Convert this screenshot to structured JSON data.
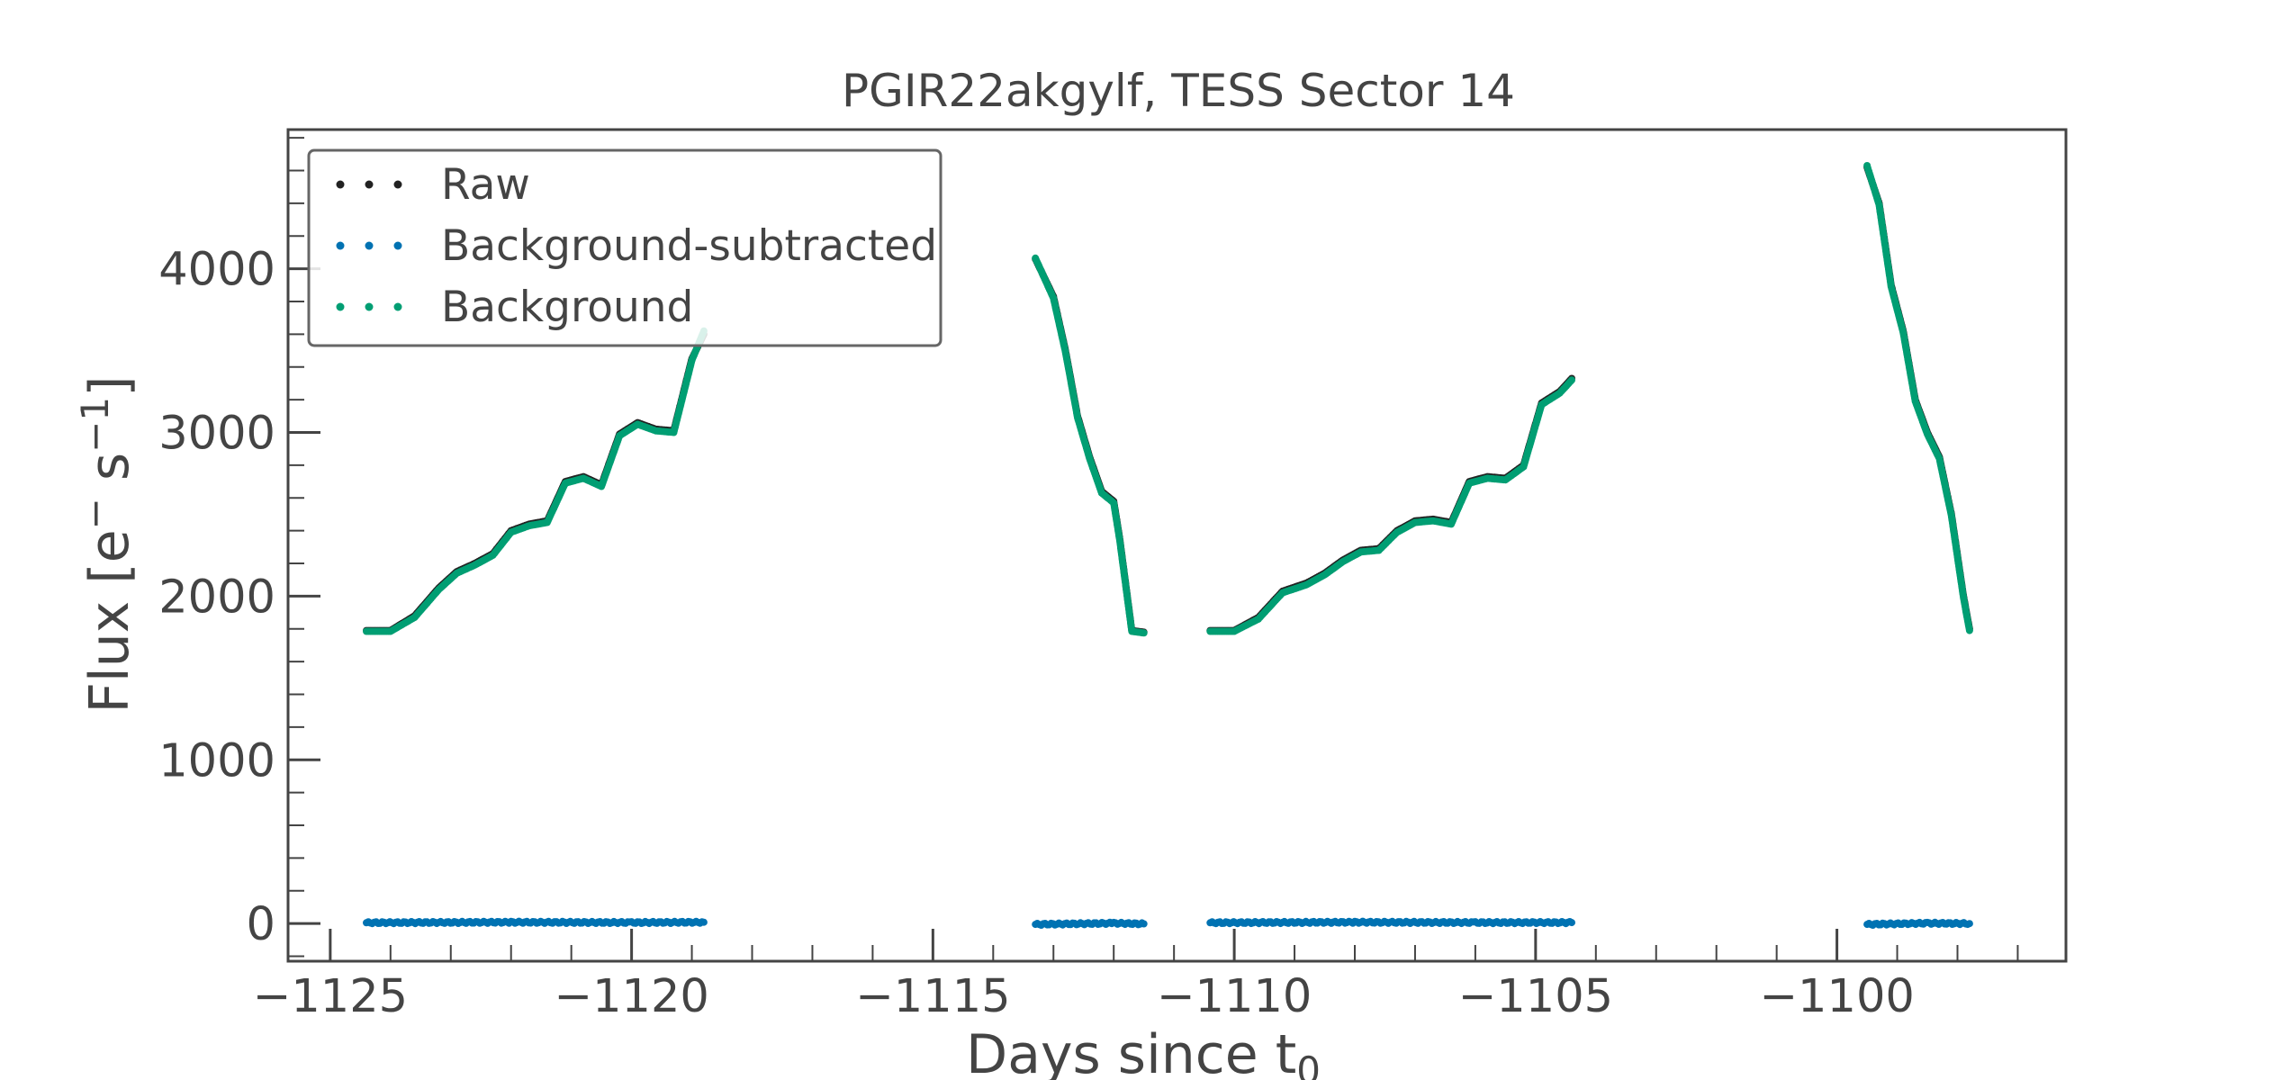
{
  "chart_data": {
    "type": "scatter",
    "title": "PGIR22akgylf, TESS Sector 14",
    "xlabel": "Days since t",
    "xlabel_subscript": "0",
    "ylabel": "Flux [e",
    "ylabel_sup1": "−",
    "ylabel_mid": " s",
    "ylabel_sup2": "−1",
    "ylabel_end": "]",
    "xlim": [
      -1125.7,
      -1096.2
    ],
    "ylim": [
      -230,
      4850
    ],
    "xticks": [
      -1125,
      -1120,
      -1115,
      -1110,
      -1105,
      -1100
    ],
    "xtick_labels": [
      "−1125",
      "−1120",
      "−1115",
      "−1110",
      "−1105",
      "−1100"
    ],
    "yticks": [
      0,
      1000,
      2000,
      3000,
      4000
    ],
    "ytick_labels": [
      "0",
      "1000",
      "2000",
      "3000",
      "4000"
    ],
    "grid": false,
    "legend_position": "top-left",
    "series": [
      {
        "name": "Raw",
        "color": "#222222",
        "segments": [
          [
            [
              -1124.4,
              1790
            ],
            [
              -1124.0,
              1790
            ],
            [
              -1123.6,
              1880
            ],
            [
              -1123.2,
              2050
            ],
            [
              -1122.9,
              2150
            ],
            [
              -1122.6,
              2200
            ],
            [
              -1122.3,
              2260
            ],
            [
              -1122.0,
              2400
            ],
            [
              -1121.7,
              2440
            ],
            [
              -1121.4,
              2460
            ],
            [
              -1121.1,
              2700
            ],
            [
              -1120.8,
              2730
            ],
            [
              -1120.5,
              2680
            ],
            [
              -1120.2,
              2990
            ],
            [
              -1119.9,
              3060
            ],
            [
              -1119.6,
              3020
            ],
            [
              -1119.3,
              3010
            ],
            [
              -1119.0,
              3450
            ],
            [
              -1118.8,
              3600
            ]
          ],
          [
            [
              -1113.3,
              4060
            ],
            [
              -1113.0,
              3830
            ],
            [
              -1112.8,
              3500
            ],
            [
              -1112.6,
              3100
            ],
            [
              -1112.4,
              2850
            ],
            [
              -1112.2,
              2640
            ],
            [
              -1112.0,
              2580
            ],
            [
              -1111.9,
              2350
            ],
            [
              -1111.7,
              1790
            ],
            [
              -1111.5,
              1780
            ]
          ],
          [
            [
              -1110.4,
              1790
            ],
            [
              -1110.0,
              1790
            ],
            [
              -1109.6,
              1870
            ],
            [
              -1109.2,
              2030
            ],
            [
              -1108.8,
              2080
            ],
            [
              -1108.5,
              2140
            ],
            [
              -1108.2,
              2220
            ],
            [
              -1107.9,
              2280
            ],
            [
              -1107.6,
              2290
            ],
            [
              -1107.3,
              2400
            ],
            [
              -1107.0,
              2460
            ],
            [
              -1106.7,
              2470
            ],
            [
              -1106.4,
              2450
            ],
            [
              -1106.1,
              2700
            ],
            [
              -1105.8,
              2730
            ],
            [
              -1105.5,
              2720
            ],
            [
              -1105.2,
              2800
            ],
            [
              -1104.9,
              3180
            ],
            [
              -1104.6,
              3250
            ],
            [
              -1104.4,
              3330
            ]
          ],
          [
            [
              -1099.5,
              4620
            ],
            [
              -1099.3,
              4400
            ],
            [
              -1099.1,
              3900
            ],
            [
              -1098.9,
              3620
            ],
            [
              -1098.7,
              3200
            ],
            [
              -1098.5,
              3000
            ],
            [
              -1098.3,
              2850
            ],
            [
              -1098.1,
              2500
            ],
            [
              -1097.9,
              2000
            ],
            [
              -1097.8,
              1800
            ]
          ]
        ]
      },
      {
        "name": "Background-subtracted",
        "color": "#0072b2",
        "segments": [
          [
            [
              -1124.4,
              5
            ],
            [
              -1122.0,
              8
            ],
            [
              -1120.0,
              6
            ],
            [
              -1118.8,
              8
            ]
          ],
          [
            [
              -1113.3,
              -5
            ],
            [
              -1112.0,
              2
            ],
            [
              -1111.5,
              -2
            ]
          ],
          [
            [
              -1110.4,
              5
            ],
            [
              -1108.0,
              8
            ],
            [
              -1106.0,
              6
            ],
            [
              -1104.4,
              6
            ]
          ],
          [
            [
              -1099.5,
              -5
            ],
            [
              -1098.5,
              2
            ],
            [
              -1097.8,
              0
            ]
          ]
        ]
      },
      {
        "name": "Background",
        "color": "#009e73",
        "segments": [
          [
            [
              -1124.4,
              1785
            ],
            [
              -1124.0,
              1785
            ],
            [
              -1123.6,
              1870
            ],
            [
              -1123.2,
              2040
            ],
            [
              -1122.9,
              2140
            ],
            [
              -1122.6,
              2190
            ],
            [
              -1122.3,
              2250
            ],
            [
              -1122.0,
              2390
            ],
            [
              -1121.7,
              2430
            ],
            [
              -1121.4,
              2450
            ],
            [
              -1121.1,
              2690
            ],
            [
              -1120.8,
              2720
            ],
            [
              -1120.5,
              2670
            ],
            [
              -1120.2,
              2980
            ],
            [
              -1119.9,
              3050
            ],
            [
              -1119.6,
              3010
            ],
            [
              -1119.3,
              3000
            ],
            [
              -1119.0,
              3440
            ],
            [
              -1118.8,
              3620
            ]
          ],
          [
            [
              -1113.3,
              4065
            ],
            [
              -1113.0,
              3820
            ],
            [
              -1112.8,
              3490
            ],
            [
              -1112.6,
              3090
            ],
            [
              -1112.4,
              2840
            ],
            [
              -1112.2,
              2630
            ],
            [
              -1112.0,
              2570
            ],
            [
              -1111.9,
              2340
            ],
            [
              -1111.7,
              1785
            ],
            [
              -1111.5,
              1775
            ]
          ],
          [
            [
              -1110.4,
              1785
            ],
            [
              -1110.0,
              1785
            ],
            [
              -1109.6,
              1860
            ],
            [
              -1109.2,
              2020
            ],
            [
              -1108.8,
              2070
            ],
            [
              -1108.5,
              2130
            ],
            [
              -1108.2,
              2210
            ],
            [
              -1107.9,
              2270
            ],
            [
              -1107.6,
              2280
            ],
            [
              -1107.3,
              2390
            ],
            [
              -1107.0,
              2450
            ],
            [
              -1106.7,
              2460
            ],
            [
              -1106.4,
              2440
            ],
            [
              -1106.1,
              2690
            ],
            [
              -1105.8,
              2720
            ],
            [
              -1105.5,
              2710
            ],
            [
              -1105.2,
              2790
            ],
            [
              -1104.9,
              3170
            ],
            [
              -1104.6,
              3240
            ],
            [
              -1104.4,
              3320
            ]
          ],
          [
            [
              -1099.5,
              4630
            ],
            [
              -1099.3,
              4390
            ],
            [
              -1099.1,
              3890
            ],
            [
              -1098.9,
              3610
            ],
            [
              -1098.7,
              3190
            ],
            [
              -1098.5,
              2990
            ],
            [
              -1098.3,
              2840
            ],
            [
              -1098.1,
              2490
            ],
            [
              -1097.9,
              1990
            ],
            [
              -1097.8,
              1790
            ]
          ]
        ]
      }
    ]
  }
}
